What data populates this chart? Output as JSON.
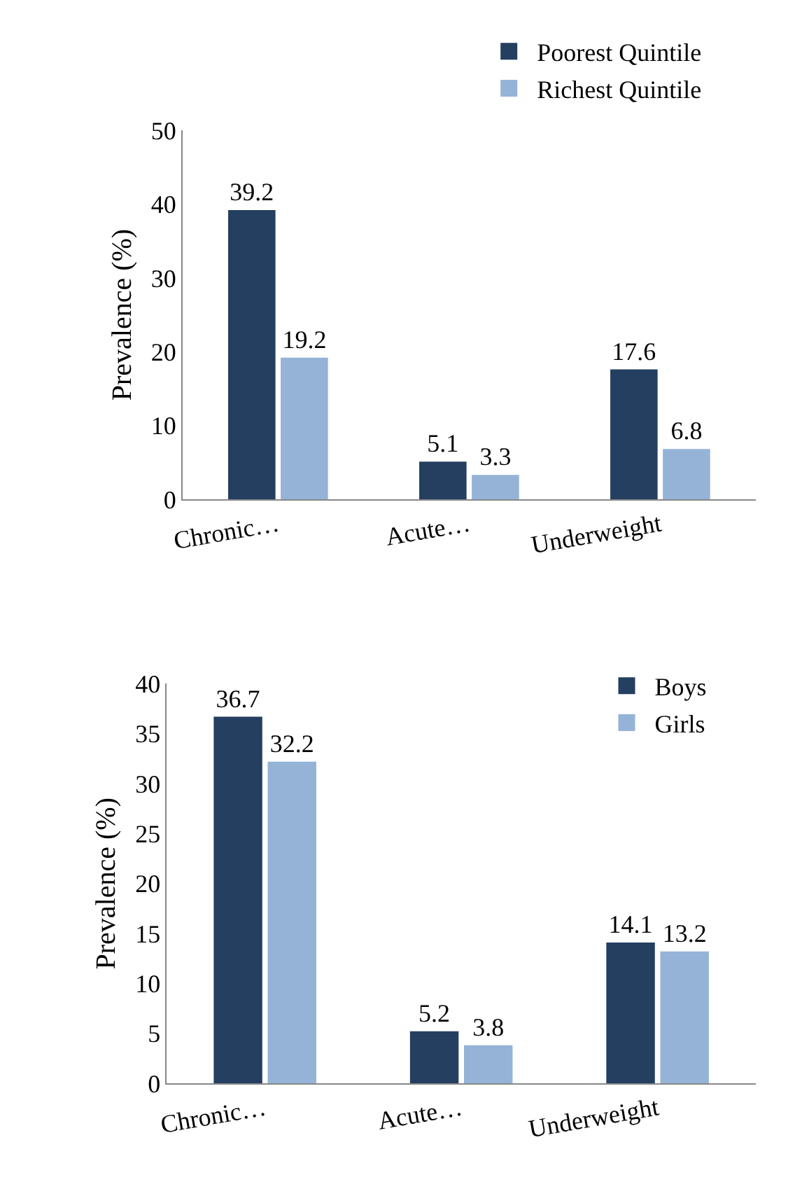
{
  "chart_data": [
    {
      "type": "bar",
      "ylabel": "Prevalence (%)",
      "categories": [
        "Chronic…",
        "Acute…",
        "Underweight"
      ],
      "series": [
        {
          "name": "Poorest Quintile",
          "color": "#243f60",
          "values": [
            39.2,
            5.1,
            17.6
          ]
        },
        {
          "name": "Richest Quintile",
          "color": "#95b3d7",
          "values": [
            19.2,
            3.3,
            6.8
          ]
        }
      ],
      "ylim": [
        0,
        50
      ],
      "yticks": [
        0,
        10,
        20,
        30,
        40,
        50
      ],
      "legend": "top right",
      "data_labels": true
    },
    {
      "type": "bar",
      "ylabel": "Prevalence (%)",
      "categories": [
        "Chronic…",
        "Acute…",
        "Underweight"
      ],
      "series": [
        {
          "name": "Boys",
          "color": "#243f60",
          "values": [
            36.7,
            5.2,
            14.1
          ]
        },
        {
          "name": "Girls",
          "color": "#95b3d7",
          "values": [
            32.2,
            3.8,
            13.2
          ]
        }
      ],
      "ylim": [
        0,
        40
      ],
      "yticks": [
        0,
        5,
        10,
        15,
        20,
        25,
        30,
        35,
        40
      ],
      "legend": "top right",
      "data_labels": true
    }
  ]
}
